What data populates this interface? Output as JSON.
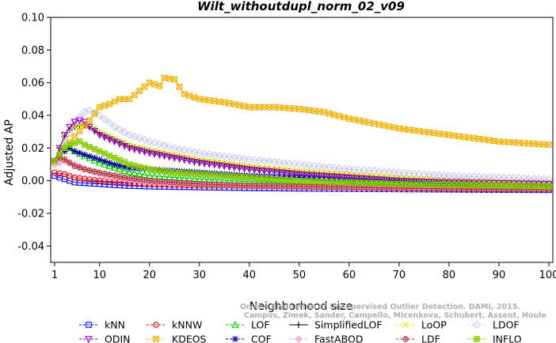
{
  "chart_data": {
    "type": "line",
    "title": "Wilt_withoutdupl_norm_02_v09",
    "xlabel": "Neighborhood size",
    "ylabel": "Adjusted AP",
    "xlim": [
      1,
      100
    ],
    "ylim": [
      -0.05,
      0.1
    ],
    "x_ticks": [
      "1",
      "10",
      "20",
      "30",
      "40",
      "50",
      "60",
      "70",
      "80",
      "90",
      "100"
    ],
    "y_ticks": [
      "-0.04",
      "-0.02",
      "0.00",
      "0.02",
      "0.04",
      "0.06",
      "0.08",
      "0.10"
    ],
    "grid": false,
    "legend_position": "bottom",
    "credit": [
      "Campos, Zimek, Sander, Campello, Micenkova, Schubert, Assent, Houle",
      "On the Evaluation of Unsupervised Outlier Detection. DAMI, 2015."
    ],
    "series": [
      {
        "name": "kNN",
        "color": "#0000ee",
        "marker": "square",
        "points": [
          [
            1,
            0.003
          ],
          [
            3,
            0.001
          ],
          [
            5,
            -0.001
          ],
          [
            10,
            -0.002
          ],
          [
            15,
            -0.003
          ],
          [
            20,
            -0.0035
          ],
          [
            30,
            -0.004
          ],
          [
            40,
            -0.0045
          ],
          [
            50,
            -0.0048
          ],
          [
            60,
            -0.005
          ],
          [
            70,
            -0.0052
          ],
          [
            80,
            -0.0054
          ],
          [
            90,
            -0.0056
          ],
          [
            100,
            -0.0057
          ]
        ]
      },
      {
        "name": "kNNW",
        "color": "#ee0000",
        "marker": "circle",
        "points": [
          [
            1,
            0.005
          ],
          [
            3,
            0.004
          ],
          [
            5,
            0.002
          ],
          [
            10,
            0.0
          ],
          [
            15,
            -0.001
          ],
          [
            20,
            -0.002
          ],
          [
            30,
            -0.003
          ],
          [
            40,
            -0.0035
          ],
          [
            50,
            -0.004
          ],
          [
            60,
            -0.0045
          ],
          [
            70,
            -0.0048
          ],
          [
            80,
            -0.005
          ],
          [
            90,
            -0.0052
          ],
          [
            100,
            -0.0053
          ]
        ]
      },
      {
        "name": "LOF",
        "color": "#00cc00",
        "marker": "triangle-up",
        "points": [
          [
            1,
            0.012
          ],
          [
            2,
            0.018
          ],
          [
            3,
            0.021
          ],
          [
            4,
            0.02
          ],
          [
            5,
            0.018
          ],
          [
            7,
            0.015
          ],
          [
            10,
            0.011
          ],
          [
            15,
            0.006
          ],
          [
            20,
            0.003
          ],
          [
            30,
            0.001
          ],
          [
            40,
            -0.0005
          ],
          [
            50,
            -0.0015
          ],
          [
            60,
            -0.002
          ],
          [
            70,
            -0.0025
          ],
          [
            80,
            -0.003
          ],
          [
            90,
            -0.0035
          ],
          [
            100,
            -0.004
          ]
        ]
      },
      {
        "name": "SimplifiedLOF",
        "color": "#000000",
        "marker": "plus",
        "points": [
          [
            1,
            0.012
          ],
          [
            2,
            0.02
          ],
          [
            3,
            0.027
          ],
          [
            4,
            0.031
          ],
          [
            5,
            0.033
          ],
          [
            6,
            0.034
          ],
          [
            7,
            0.034
          ],
          [
            8,
            0.033
          ],
          [
            10,
            0.029
          ],
          [
            13,
            0.025
          ],
          [
            16,
            0.021
          ],
          [
            20,
            0.018
          ],
          [
            25,
            0.015
          ],
          [
            30,
            0.012
          ],
          [
            40,
            0.008
          ],
          [
            50,
            0.005
          ],
          [
            60,
            0.003
          ],
          [
            70,
            0.001
          ],
          [
            80,
            0.0
          ],
          [
            90,
            -0.001
          ],
          [
            100,
            -0.0015
          ]
        ]
      },
      {
        "name": "LoOP",
        "color": "#f0e000",
        "marker": "cross",
        "points": [
          [
            1,
            0.011
          ],
          [
            2,
            0.019
          ],
          [
            3,
            0.026
          ],
          [
            4,
            0.031
          ],
          [
            5,
            0.033
          ],
          [
            6,
            0.034
          ],
          [
            7,
            0.035
          ],
          [
            8,
            0.034
          ],
          [
            10,
            0.03
          ],
          [
            13,
            0.026
          ],
          [
            16,
            0.022
          ],
          [
            20,
            0.019
          ],
          [
            25,
            0.016
          ],
          [
            30,
            0.013
          ],
          [
            40,
            0.009
          ],
          [
            50,
            0.006
          ],
          [
            60,
            0.004
          ],
          [
            70,
            0.002
          ],
          [
            80,
            0.0005
          ],
          [
            90,
            -0.0005
          ],
          [
            100,
            -0.001
          ]
        ]
      },
      {
        "name": "LDOF",
        "color": "#c8c8ee",
        "marker": "diamond",
        "points": [
          [
            1,
            0.01
          ],
          [
            3,
            0.022
          ],
          [
            5,
            0.036
          ],
          [
            7,
            0.042
          ],
          [
            8,
            0.043
          ],
          [
            10,
            0.04
          ],
          [
            13,
            0.033
          ],
          [
            16,
            0.028
          ],
          [
            20,
            0.024
          ],
          [
            25,
            0.02
          ],
          [
            30,
            0.017
          ],
          [
            40,
            0.013
          ],
          [
            50,
            0.01
          ],
          [
            60,
            0.007
          ],
          [
            70,
            0.005
          ],
          [
            80,
            0.003
          ],
          [
            90,
            0.002
          ],
          [
            100,
            0.001
          ]
        ]
      },
      {
        "name": "ODIN",
        "color": "#9900cc",
        "marker": "triangle-down",
        "points": [
          [
            1,
            0.012
          ],
          [
            2,
            0.02
          ],
          [
            3,
            0.028
          ],
          [
            4,
            0.033
          ],
          [
            5,
            0.036
          ],
          [
            6,
            0.037
          ],
          [
            7,
            0.036
          ],
          [
            8,
            0.033
          ],
          [
            10,
            0.028
          ],
          [
            13,
            0.024
          ],
          [
            16,
            0.02
          ],
          [
            20,
            0.017
          ],
          [
            25,
            0.014
          ],
          [
            30,
            0.011
          ],
          [
            40,
            0.007
          ],
          [
            50,
            0.004
          ],
          [
            60,
            0.002
          ],
          [
            70,
            0.0
          ],
          [
            80,
            -0.001
          ],
          [
            90,
            -0.0015
          ],
          [
            100,
            -0.002
          ]
        ]
      },
      {
        "name": "KDEOS",
        "color": "#f0b000",
        "marker": "boxed-x",
        "points": [
          [
            1,
            0.012
          ],
          [
            3,
            0.02
          ],
          [
            5,
            0.027
          ],
          [
            8,
            0.037
          ],
          [
            10,
            0.045
          ],
          [
            12,
            0.047
          ],
          [
            14,
            0.05
          ],
          [
            16,
            0.05
          ],
          [
            18,
            0.055
          ],
          [
            20,
            0.06
          ],
          [
            22,
            0.058
          ],
          [
            23,
            0.063
          ],
          [
            25,
            0.062
          ],
          [
            27,
            0.053
          ],
          [
            30,
            0.05
          ],
          [
            35,
            0.048
          ],
          [
            40,
            0.045
          ],
          [
            45,
            0.045
          ],
          [
            50,
            0.044
          ],
          [
            55,
            0.042
          ],
          [
            60,
            0.038
          ],
          [
            65,
            0.035
          ],
          [
            70,
            0.032
          ],
          [
            75,
            0.03
          ],
          [
            80,
            0.028
          ],
          [
            85,
            0.026
          ],
          [
            90,
            0.024
          ],
          [
            95,
            0.023
          ],
          [
            100,
            0.022
          ]
        ]
      },
      {
        "name": "COF",
        "color": "#000099",
        "marker": "asterisk",
        "points": [
          [
            1,
            0.012
          ],
          [
            2,
            0.015
          ],
          [
            3,
            0.018
          ],
          [
            4,
            0.02
          ],
          [
            5,
            0.018
          ],
          [
            7,
            0.016
          ],
          [
            10,
            0.013
          ],
          [
            13,
            0.01
          ],
          [
            16,
            0.008
          ],
          [
            20,
            0.007
          ],
          [
            25,
            0.006
          ],
          [
            30,
            0.005
          ],
          [
            40,
            0.003
          ],
          [
            50,
            0.002
          ],
          [
            60,
            0.0
          ],
          [
            70,
            -0.001
          ],
          [
            80,
            -0.002
          ],
          [
            90,
            -0.003
          ],
          [
            100,
            -0.004
          ]
        ]
      },
      {
        "name": "FastABOD",
        "color": "#ffb0dd",
        "marker": "diamond-filled",
        "points": [
          [
            1,
            0.01
          ],
          [
            3,
            0.012
          ],
          [
            5,
            0.01
          ],
          [
            8,
            0.006
          ],
          [
            10,
            0.004
          ],
          [
            15,
            0.001
          ],
          [
            20,
            -0.001
          ],
          [
            30,
            -0.0025
          ],
          [
            40,
            -0.0035
          ],
          [
            50,
            -0.004
          ],
          [
            60,
            -0.0045
          ],
          [
            70,
            -0.0048
          ],
          [
            80,
            -0.005
          ],
          [
            90,
            -0.0052
          ],
          [
            100,
            -0.0053
          ]
        ]
      },
      {
        "name": "LDF",
        "color": "#aa3333",
        "marker": "circle-plus",
        "points": [
          [
            1,
            0.012
          ],
          [
            2,
            0.014
          ],
          [
            3,
            0.013
          ],
          [
            4,
            0.011
          ],
          [
            5,
            0.009
          ],
          [
            7,
            0.007
          ],
          [
            10,
            0.005
          ],
          [
            15,
            0.002
          ],
          [
            20,
            0.0
          ],
          [
            30,
            -0.002
          ],
          [
            40,
            -0.003
          ],
          [
            50,
            -0.0035
          ],
          [
            60,
            -0.004
          ],
          [
            70,
            -0.0045
          ],
          [
            80,
            -0.005
          ],
          [
            90,
            -0.0052
          ],
          [
            100,
            -0.0055
          ]
        ]
      },
      {
        "name": "INFLO",
        "color": "#88cc00",
        "marker": "boxed-asterisk",
        "points": [
          [
            1,
            0.012
          ],
          [
            2,
            0.016
          ],
          [
            3,
            0.02
          ],
          [
            4,
            0.022
          ],
          [
            5,
            0.023
          ],
          [
            6,
            0.024
          ],
          [
            7,
            0.022
          ],
          [
            10,
            0.018
          ],
          [
            13,
            0.014
          ],
          [
            16,
            0.01
          ],
          [
            20,
            0.007
          ],
          [
            25,
            0.005
          ],
          [
            30,
            0.004
          ],
          [
            40,
            0.002
          ],
          [
            50,
            0.0
          ],
          [
            60,
            -0.001
          ],
          [
            70,
            -0.002
          ],
          [
            80,
            -0.0025
          ],
          [
            90,
            -0.003
          ],
          [
            100,
            -0.0035
          ]
        ]
      }
    ]
  }
}
